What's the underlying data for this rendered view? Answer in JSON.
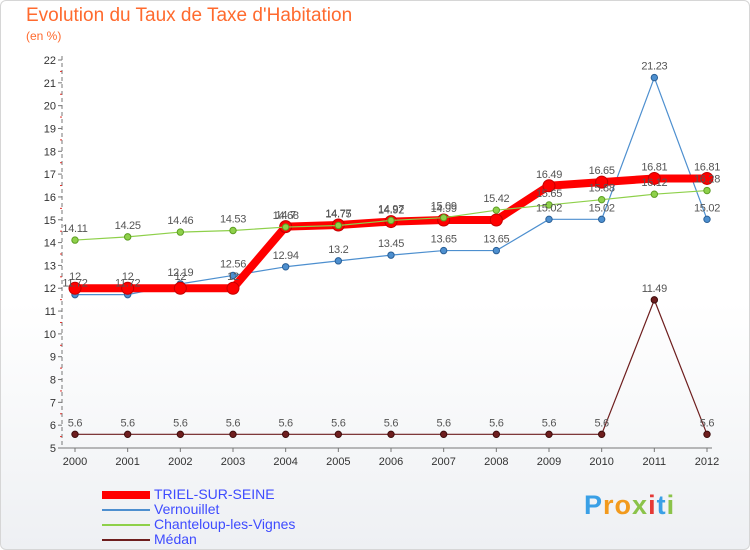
{
  "title": "Evolution du Taux de Taxe d'Habitation",
  "subtitle": "(en %)",
  "brand": {
    "text": "Proxiti",
    "letter_colors": [
      "#3aa0e6",
      "#f29a1d",
      "#f29a1d",
      "#8bc34a",
      "#e53935",
      "#3aa0e6",
      "#8bc34a"
    ]
  },
  "chart_data": {
    "type": "line",
    "title": "Evolution du Taux de Taxe d'Habitation",
    "ylabel": "(en %)",
    "xlabel": "",
    "x": [
      "2000",
      "2001",
      "2002",
      "2003",
      "2004",
      "2005",
      "2006",
      "2007",
      "2008",
      "2009",
      "2010",
      "2011",
      "2012"
    ],
    "ylim": [
      5,
      22
    ],
    "yticks": [
      5,
      6,
      7,
      8,
      9,
      10,
      11,
      12,
      13,
      14,
      15,
      16,
      17,
      18,
      19,
      20,
      21,
      22
    ],
    "grid": false,
    "legend_position": "bottom-left",
    "series": [
      {
        "name": "TRIEL-SUR-SEINE",
        "color": "#ff0000",
        "values": [
          12,
          12,
          12,
          12,
          14.7,
          14.77,
          14.92,
          14.99,
          14.99,
          16.49,
          16.65,
          16.81,
          16.81
        ],
        "labels": [
          "12",
          "12",
          "12",
          "12",
          "14.7",
          "14.77",
          "14.92",
          "14.99",
          "",
          "16.49",
          "16.65",
          "16.81",
          "16.81"
        ]
      },
      {
        "name": "Vernouillet",
        "color": "#4d8fcf",
        "values": [
          11.72,
          11.72,
          12.19,
          12.56,
          12.94,
          13.2,
          13.45,
          13.65,
          13.65,
          15.02,
          15.02,
          21.23,
          15.02
        ],
        "labels": [
          "11.72",
          "11.72",
          "12.19",
          "12.56",
          "12.94",
          "13.2",
          "13.45",
          "13.65",
          "13.65",
          "15.02",
          "15.02",
          "21.23",
          "15.02"
        ]
      },
      {
        "name": "Chanteloup-les-Vignes",
        "color": "#8ed04a",
        "values": [
          14.11,
          14.25,
          14.46,
          14.53,
          14.68,
          14.75,
          14.97,
          15.09,
          15.42,
          15.65,
          15.88,
          16.12,
          16.28
        ],
        "labels": [
          "14.11",
          "14.25",
          "14.46",
          "14.53",
          "14.68",
          "14.75",
          "14.97",
          "15.09",
          "15.42",
          "15.65",
          "15.88",
          "16.12",
          "16.28"
        ]
      },
      {
        "name": "Médan",
        "color": "#6e1e1e",
        "values": [
          5.6,
          5.6,
          5.6,
          5.6,
          5.6,
          5.6,
          5.6,
          5.6,
          5.6,
          5.6,
          5.6,
          11.49,
          5.6
        ],
        "labels": [
          "5.6",
          "5.6",
          "5.6",
          "5.6",
          "5.6",
          "5.6",
          "5.6",
          "5.6",
          "5.6",
          "5.6",
          "5.6",
          "11.49",
          "5.6"
        ]
      }
    ]
  }
}
